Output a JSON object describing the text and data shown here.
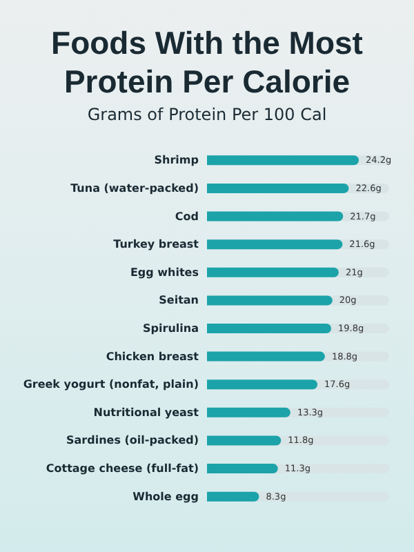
{
  "chart_data": {
    "type": "bar",
    "orientation": "horizontal",
    "title": "Foods With the Most\nProtein Per Calorie",
    "subtitle": "Grams of Protein Per 100 Cal",
    "categories": [
      "Shrimp",
      "Tuna (water-packed)",
      "Cod",
      "Turkey breast",
      "Egg whites",
      "Seitan",
      "Spirulina",
      "Chicken breast",
      "Greek yogurt (nonfat, plain)",
      "Nutritional yeast",
      "Sardines (oil-packed)",
      "Cottage cheese (full-fat)",
      "Whole egg"
    ],
    "values": [
      24.2,
      22.6,
      21.7,
      21.6,
      21,
      20,
      19.8,
      18.8,
      17.6,
      13.3,
      11.8,
      11.3,
      8.3
    ],
    "value_labels": [
      "24.2g",
      "22.6g",
      "21.7g",
      "21.6g",
      "21g",
      "20g",
      "19.8g",
      "18.8g",
      "17.6g",
      "13.3g",
      "11.8g",
      "11.3g",
      "8.3g"
    ],
    "color": "#1ba3a9"
  }
}
